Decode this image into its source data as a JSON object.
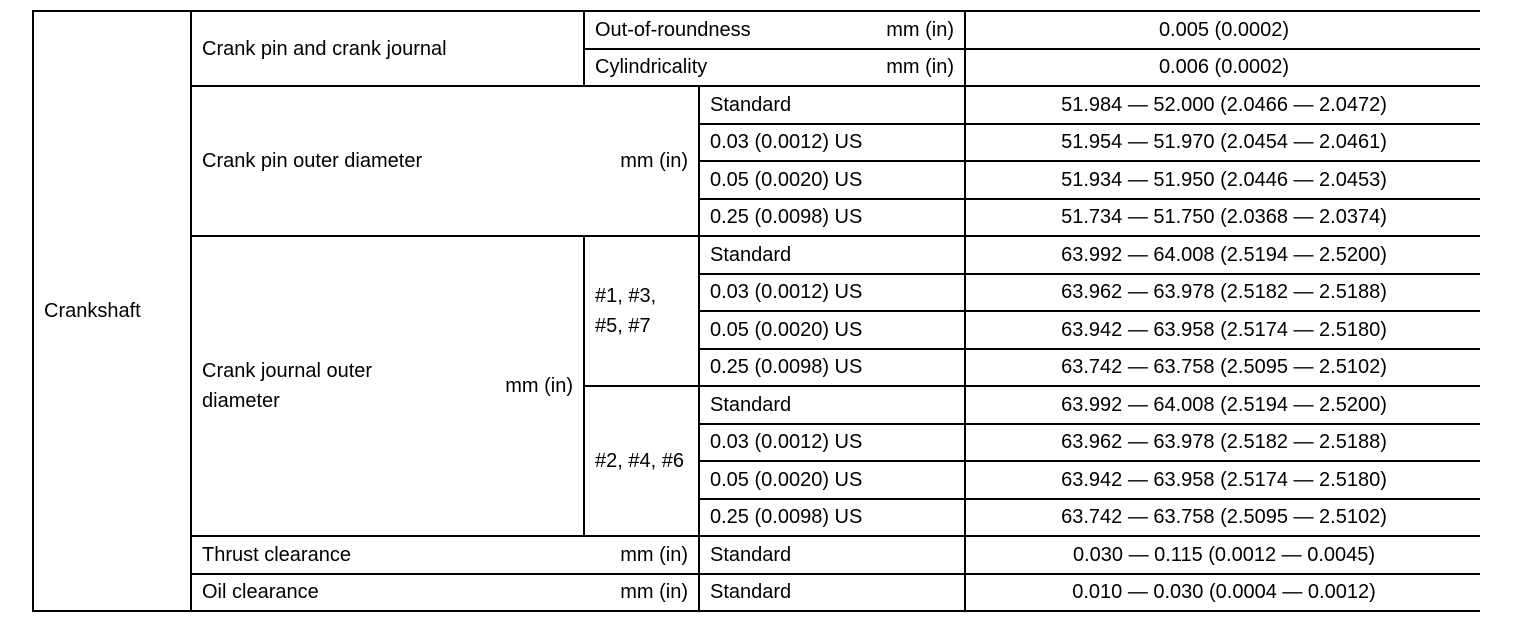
{
  "section": "Crankshaft",
  "crank_pin_and_journal": {
    "label": "Crank pin and crank journal",
    "rows": [
      {
        "label": "Out-of-roundness",
        "unit": "mm (in)",
        "value": "0.005 (0.0002)"
      },
      {
        "label": "Cylindricality",
        "unit": "mm (in)",
        "value": "0.006 (0.0002)"
      }
    ]
  },
  "crank_pin_od": {
    "label": "Crank pin outer diameter",
    "unit": "mm (in)",
    "rows": [
      {
        "grade": "Standard",
        "value": "51.984 — 52.000 (2.0466 — 2.0472)"
      },
      {
        "grade": "0.03 (0.0012) US",
        "value": "51.954 — 51.970 (2.0454 — 2.0461)"
      },
      {
        "grade": "0.05 (0.0020) US",
        "value": "51.934 — 51.950 (2.0446 — 2.0453)"
      },
      {
        "grade": "0.25 (0.0098) US",
        "value": "51.734 — 51.750 (2.0368 — 2.0374)"
      }
    ]
  },
  "crank_journal_od": {
    "label": "Crank journal outer diameter",
    "unit": "mm (in)",
    "groups": [
      {
        "journals": "#1, #3, #5, #7",
        "rows": [
          {
            "grade": "Standard",
            "value": "63.992 — 64.008 (2.5194 — 2.5200)"
          },
          {
            "grade": "0.03 (0.0012) US",
            "value": "63.962 — 63.978 (2.5182 — 2.5188)"
          },
          {
            "grade": "0.05 (0.0020) US",
            "value": "63.942 — 63.958 (2.5174 — 2.5180)"
          },
          {
            "grade": "0.25 (0.0098) US",
            "value": "63.742 — 63.758 (2.5095 — 2.5102)"
          }
        ]
      },
      {
        "journals": "#2, #4, #6",
        "rows": [
          {
            "grade": "Standard",
            "value": "63.992 — 64.008 (2.5194 — 2.5200)"
          },
          {
            "grade": "0.03 (0.0012) US",
            "value": "63.962 — 63.978 (2.5182 — 2.5188)"
          },
          {
            "grade": "0.05 (0.0020) US",
            "value": "63.942 — 63.958 (2.5174 — 2.5180)"
          },
          {
            "grade": "0.25 (0.0098) US",
            "value": "63.742 — 63.758 (2.5095 — 2.5102)"
          }
        ]
      }
    ]
  },
  "thrust_clearance": {
    "label": "Thrust clearance",
    "unit": "mm (in)",
    "grade": "Standard",
    "value": "0.030 — 0.115 (0.0012 — 0.0045)"
  },
  "oil_clearance": {
    "label": "Oil clearance",
    "unit": "mm (in)",
    "grade": "Standard",
    "value": "0.010 — 0.030 (0.0004 — 0.0012)"
  }
}
